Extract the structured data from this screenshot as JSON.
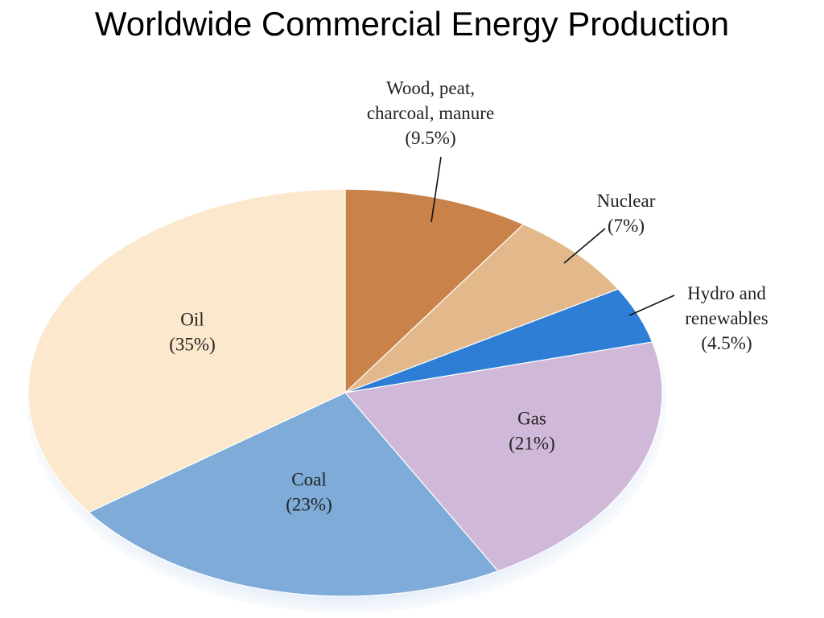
{
  "title": "Worldwide Commercial Energy Production",
  "chart_data": {
    "type": "pie",
    "title": "Worldwide Commercial Energy Production",
    "slices": [
      {
        "label": [
          "Wood, peat,",
          "charcoal, manure",
          "(9.5%)"
        ],
        "name": "Wood, peat, charcoal, manure",
        "value": 9.5,
        "color": "#c8824a"
      },
      {
        "label": [
          "Nuclear",
          "(7%)"
        ],
        "name": "Nuclear",
        "value": 7,
        "color": "#e3b98b"
      },
      {
        "label": [
          "Hydro and",
          "renewables",
          "(4.5%)"
        ],
        "name": "Hydro and renewables",
        "value": 4.5,
        "color": "#2e7ed6"
      },
      {
        "label": [
          "Gas",
          "(21%)"
        ],
        "name": "Gas",
        "value": 21,
        "color": "#d0b8d8"
      },
      {
        "label": [
          "Coal",
          "(23%)"
        ],
        "name": "Coal",
        "value": 23,
        "color": "#7eabd7"
      },
      {
        "label": [
          "Oil",
          "(35%)"
        ],
        "name": "Oil",
        "value": 35,
        "color": "#fbe8cd"
      }
    ]
  }
}
